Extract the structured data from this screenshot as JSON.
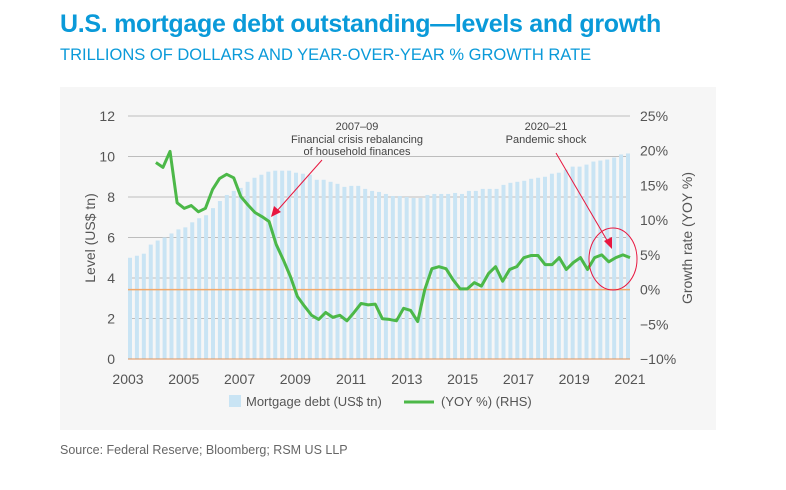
{
  "title": "U.S. mortgage debt outstanding—levels and growth",
  "subtitle": "TRILLIONS OF DOLLARS AND YEAR-OVER-YEAR % GROWTH RATE",
  "source": "Source: Federal Reserve; Bloomberg; RSM US LLP",
  "chart_data": {
    "type": "bar+line",
    "xlim": [
      2003,
      2021
    ],
    "x_ticks": [
      "2003",
      "2005",
      "2007",
      "2009",
      "2011",
      "2013",
      "2015",
      "2017",
      "2019",
      "2021"
    ],
    "ylabel": "Level (US$ tn)",
    "ylim": [
      0,
      12
    ],
    "y_ticks": [
      "0",
      "2",
      "4",
      "6",
      "8",
      "10",
      "12"
    ],
    "y2label": "Growth rate (YOY %)",
    "y2lim": [
      -10,
      25
    ],
    "y2_ticks": [
      "-10%",
      "-5%",
      "0%",
      "5%",
      "10%",
      "15%",
      "20%",
      "25%"
    ],
    "grid": true,
    "legend": {
      "placement": "bottom",
      "bar_label": "Mortgage debt (US$ tn)",
      "line_label": "(YOY %) (RHS)"
    },
    "colors": {
      "bars": "#c9e4f4",
      "line": "#4cb848",
      "zero_line": "#f2a96b",
      "annotation": "#e8173f",
      "grid": "#bdbdbd"
    },
    "bars": {
      "name": "Mortgage debt (US$ tn)",
      "x_start": 2003,
      "frequency": "quarterly",
      "values": [
        5.0,
        5.1,
        5.2,
        5.65,
        5.85,
        6.0,
        6.2,
        6.4,
        6.5,
        6.75,
        6.95,
        7.1,
        7.45,
        7.8,
        8.1,
        8.3,
        8.45,
        8.75,
        8.95,
        9.1,
        9.25,
        9.3,
        9.3,
        9.3,
        9.2,
        9.15,
        9.1,
        8.85,
        8.85,
        8.75,
        8.65,
        8.5,
        8.55,
        8.55,
        8.4,
        8.3,
        8.25,
        8.15,
        8.05,
        8.05,
        8.0,
        7.95,
        7.95,
        8.1,
        8.15,
        8.15,
        8.15,
        8.2,
        8.15,
        8.3,
        8.3,
        8.4,
        8.4,
        8.4,
        8.6,
        8.7,
        8.75,
        8.8,
        8.9,
        8.95,
        9.0,
        9.15,
        9.2,
        9.35,
        9.5,
        9.5,
        9.6,
        9.75,
        9.8,
        9.85,
        9.95,
        10.1,
        10.15
      ]
    },
    "line": {
      "name": "(YOY %) (RHS)",
      "x_start": 2004,
      "x_end": 2021,
      "values": [
        18.3,
        17.6,
        19.9,
        12.5,
        11.7,
        12.1,
        11.2,
        11.7,
        14.4,
        16.0,
        16.6,
        16.1,
        13.4,
        12.2,
        11.1,
        10.5,
        9.8,
        6.5,
        4.3,
        1.9,
        -1.0,
        -2.4,
        -3.7,
        -4.3,
        -3.3,
        -4.0,
        -3.7,
        -4.5,
        -3.3,
        -2.0,
        -2.2,
        -2.1,
        -4.2,
        -4.3,
        -4.5,
        -2.7,
        -3.0,
        -4.6,
        0.0,
        3.0,
        3.3,
        3.0,
        1.4,
        0.1,
        0.1,
        1.0,
        0.5,
        2.3,
        3.3,
        1.2,
        2.9,
        3.3,
        4.6,
        4.9,
        4.9,
        3.6,
        3.6,
        4.6,
        2.9,
        3.9,
        4.6,
        2.9,
        4.6,
        5.0,
        4.0,
        4.6,
        5.0,
        4.6
      ]
    },
    "annotations": [
      {
        "lines": [
          "2007–09",
          "Financial crisis rebalancing",
          "of household finances"
        ],
        "target_x": 2008.0
      },
      {
        "lines": [
          "2020–21",
          "Pandemic shock"
        ],
        "target_x": 2020.5
      }
    ]
  }
}
